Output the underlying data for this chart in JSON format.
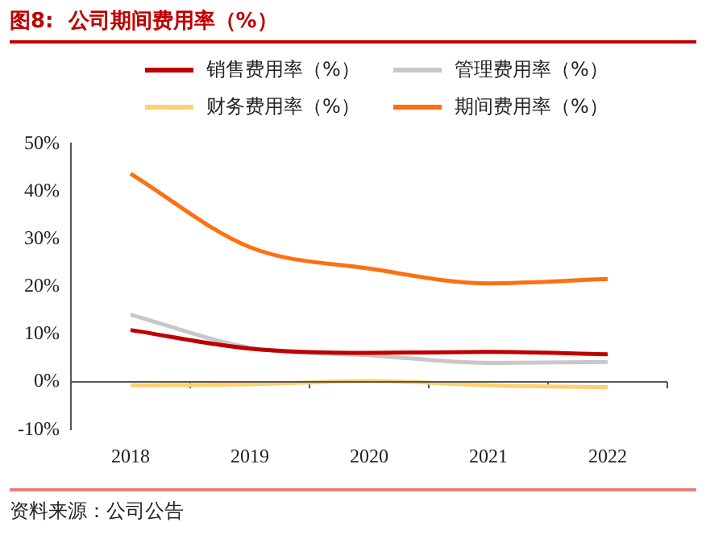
{
  "chart_data": {
    "type": "line",
    "title": "图8:  公司期间费用率（%）",
    "categories": [
      "2018",
      "2019",
      "2020",
      "2021",
      "2022"
    ],
    "series": [
      {
        "name": "销售费用率（%）",
        "color": "#c00000",
        "values": [
          10.9,
          7.0,
          6.1,
          6.3,
          5.8
        ]
      },
      {
        "name": "管理费用率（%）",
        "color": "#c8c8c8",
        "values": [
          14.1,
          7.2,
          5.6,
          4.0,
          4.2
        ]
      },
      {
        "name": "财务费用率（%）",
        "color": "#ffd070",
        "values": [
          -0.7,
          -0.5,
          0.2,
          -0.7,
          -1.1
        ]
      },
      {
        "name": "期间费用率（%）",
        "color": "#ff7010",
        "values": [
          43.7,
          28.3,
          23.8,
          20.7,
          21.6
        ]
      }
    ],
    "ylim": [
      -10,
      50
    ],
    "yticks": [
      {
        "value": -10,
        "label": "-10%"
      },
      {
        "value": 0,
        "label": "0%"
      },
      {
        "value": 10,
        "label": "10%"
      },
      {
        "value": 20,
        "label": "20%"
      },
      {
        "value": 30,
        "label": "30%"
      },
      {
        "value": 40,
        "label": "40%"
      },
      {
        "value": 50,
        "label": "50%"
      }
    ],
    "ref_lines": [
      {
        "axis": "y",
        "value": 0,
        "color": "#555555"
      }
    ],
    "grid": false,
    "legend": "top",
    "marker": "none",
    "line_style": "solid",
    "annotations": [
      "资料来源：公司公告"
    ]
  }
}
